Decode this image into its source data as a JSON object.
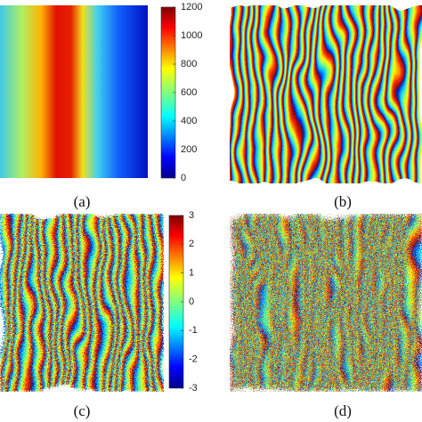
{
  "panels": [
    {
      "label": "(a)"
    },
    {
      "label": "(b)"
    },
    {
      "label": "(c)"
    },
    {
      "label": "(d)"
    }
  ],
  "colorbars": [
    {
      "lim": [
        0,
        1200
      ],
      "ticks": [
        0,
        200,
        400,
        600,
        800,
        1000,
        1200
      ]
    },
    {
      "lim": [
        -3,
        3
      ],
      "ticks": [
        -3,
        -2,
        -1,
        0,
        1,
        2,
        3
      ]
    }
  ]
}
